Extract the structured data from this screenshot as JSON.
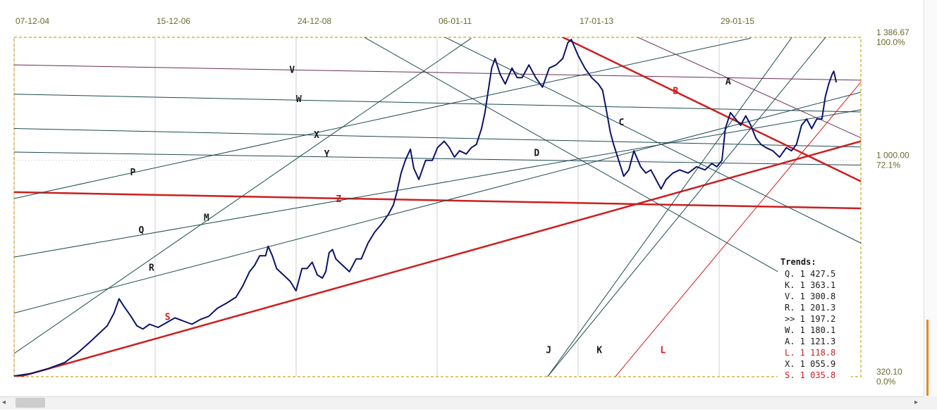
{
  "chart_data": {
    "type": "line",
    "x_axis": {
      "tick_labels": [
        "07-12-04",
        "15-12-06",
        "24-12-08",
        "06-01-11",
        "17-01-13",
        "29-01-15"
      ],
      "range": [
        "07-12-04",
        "2016-08"
      ]
    },
    "y_axis": {
      "range": [
        320.1,
        1386.67
      ],
      "ticks": [
        {
          "value": 1386.67,
          "label": "1 386.67",
          "pct": "100.0%"
        },
        {
          "value": 1000.0,
          "label": "1 000.00",
          "pct": "72.1%"
        },
        {
          "value": 320.1,
          "label": "320.10",
          "pct": "0.0%"
        }
      ]
    },
    "price_series": {
      "name": "",
      "color": "#0b1466",
      "points": [
        [
          0.0,
          322
        ],
        [
          0.02,
          330
        ],
        [
          0.04,
          345
        ],
        [
          0.06,
          365
        ],
        [
          0.075,
          395
        ],
        [
          0.09,
          430
        ],
        [
          0.1,
          455
        ],
        [
          0.11,
          480
        ],
        [
          0.118,
          520
        ],
        [
          0.124,
          565
        ],
        [
          0.13,
          540
        ],
        [
          0.138,
          510
        ],
        [
          0.145,
          480
        ],
        [
          0.152,
          470
        ],
        [
          0.16,
          485
        ],
        [
          0.17,
          475
        ],
        [
          0.18,
          490
        ],
        [
          0.19,
          505
        ],
        [
          0.2,
          495
        ],
        [
          0.21,
          485
        ],
        [
          0.22,
          500
        ],
        [
          0.23,
          510
        ],
        [
          0.24,
          535
        ],
        [
          0.25,
          550
        ],
        [
          0.262,
          570
        ],
        [
          0.27,
          605
        ],
        [
          0.278,
          650
        ],
        [
          0.284,
          670
        ],
        [
          0.29,
          700
        ],
        [
          0.297,
          700
        ],
        [
          0.3,
          730
        ],
        [
          0.305,
          700
        ],
        [
          0.31,
          660
        ],
        [
          0.318,
          640
        ],
        [
          0.326,
          620
        ],
        [
          0.333,
          590
        ],
        [
          0.34,
          660
        ],
        [
          0.346,
          660
        ],
        [
          0.352,
          680
        ],
        [
          0.358,
          640
        ],
        [
          0.364,
          630
        ],
        [
          0.368,
          650
        ],
        [
          0.372,
          710
        ],
        [
          0.376,
          720
        ],
        [
          0.38,
          690
        ],
        [
          0.388,
          670
        ],
        [
          0.396,
          650
        ],
        [
          0.404,
          690
        ],
        [
          0.41,
          690
        ],
        [
          0.418,
          740
        ],
        [
          0.426,
          775
        ],
        [
          0.434,
          800
        ],
        [
          0.442,
          830
        ],
        [
          0.448,
          860
        ],
        [
          0.452,
          900
        ],
        [
          0.457,
          960
        ],
        [
          0.462,
          1000
        ],
        [
          0.468,
          1035
        ],
        [
          0.472,
          975
        ],
        [
          0.478,
          940
        ],
        [
          0.486,
          1000
        ],
        [
          0.494,
          1000
        ],
        [
          0.5,
          1040
        ],
        [
          0.508,
          1060
        ],
        [
          0.514,
          1040
        ],
        [
          0.52,
          1010
        ],
        [
          0.526,
          1030
        ],
        [
          0.534,
          1020
        ],
        [
          0.54,
          1040
        ],
        [
          0.546,
          1050
        ],
        [
          0.552,
          1100
        ],
        [
          0.556,
          1150
        ],
        [
          0.56,
          1220
        ],
        [
          0.564,
          1290
        ],
        [
          0.568,
          1320
        ],
        [
          0.574,
          1270
        ],
        [
          0.58,
          1240
        ],
        [
          0.588,
          1290
        ],
        [
          0.594,
          1260
        ],
        [
          0.6,
          1260
        ],
        [
          0.608,
          1300
        ],
        [
          0.616,
          1260
        ],
        [
          0.624,
          1230
        ],
        [
          0.632,
          1290
        ],
        [
          0.64,
          1300
        ],
        [
          0.648,
          1320
        ],
        [
          0.654,
          1370
        ],
        [
          0.658,
          1380
        ],
        [
          0.666,
          1330
        ],
        [
          0.674,
          1290
        ],
        [
          0.682,
          1260
        ],
        [
          0.69,
          1240
        ],
        [
          0.695,
          1220
        ],
        [
          0.7,
          1150
        ],
        [
          0.704,
          1090
        ],
        [
          0.708,
          1050
        ],
        [
          0.714,
          1000
        ],
        [
          0.72,
          950
        ],
        [
          0.726,
          970
        ],
        [
          0.732,
          1030
        ],
        [
          0.74,
          980
        ],
        [
          0.746,
          960
        ],
        [
          0.752,
          970
        ],
        [
          0.76,
          930
        ],
        [
          0.764,
          910
        ],
        [
          0.77,
          940
        ],
        [
          0.778,
          960
        ],
        [
          0.786,
          970
        ],
        [
          0.796,
          960
        ],
        [
          0.806,
          980
        ],
        [
          0.816,
          970
        ],
        [
          0.824,
          990
        ],
        [
          0.83,
          980
        ],
        [
          0.836,
          1000
        ],
        [
          0.84,
          1100
        ],
        [
          0.846,
          1150
        ],
        [
          0.852,
          1130
        ],
        [
          0.858,
          1110
        ],
        [
          0.864,
          1140
        ],
        [
          0.87,
          1110
        ],
        [
          0.876,
          1070
        ],
        [
          0.882,
          1050
        ],
        [
          0.888,
          1040
        ],
        [
          0.896,
          1030
        ],
        [
          0.904,
          1010
        ],
        [
          0.912,
          1040
        ],
        [
          0.918,
          1030
        ],
        [
          0.924,
          1050
        ],
        [
          0.93,
          1110
        ],
        [
          0.936,
          1130
        ],
        [
          0.942,
          1100
        ],
        [
          0.948,
          1130
        ],
        [
          0.954,
          1130
        ],
        [
          0.958,
          1200
        ],
        [
          0.962,
          1240
        ],
        [
          0.966,
          1270
        ],
        [
          0.968,
          1280
        ],
        [
          0.971,
          1245
        ]
      ]
    },
    "trend_lines": [
      {
        "label": "V",
        "color": "#6a2d5c",
        "width": 1,
        "label_color": "#1a1a1a",
        "points": [
          [
            0.0,
            1300
          ],
          [
            1.0,
            1252
          ]
        ],
        "label_at": [
          0.325,
          1275
        ]
      },
      {
        "label": "W",
        "color": "#1e4a50",
        "width": 1,
        "label_color": "#1a1a1a",
        "points": [
          [
            0.0,
            1208
          ],
          [
            1.0,
            1152
          ]
        ],
        "label_at": [
          0.333,
          1183
        ]
      },
      {
        "label": "X",
        "color": "#1e4a50",
        "width": 1,
        "label_color": "#1a1a1a",
        "points": [
          [
            0.0,
            1100
          ],
          [
            1.0,
            1042
          ]
        ],
        "label_at": [
          0.354,
          1070
        ]
      },
      {
        "label": "Y",
        "color": "#1e4a50",
        "width": 1,
        "label_color": "#1a1a1a",
        "points": [
          [
            0.0,
            1026
          ],
          [
            1.0,
            985
          ]
        ],
        "label_at": [
          0.366,
          1011
        ]
      },
      {
        "label": "Z",
        "color": "#cc1f1f",
        "width": 2.5,
        "label_color": "#cc1f1f",
        "points": [
          [
            0.0,
            900
          ],
          [
            1.0,
            849
          ]
        ],
        "label_at": [
          0.38,
          869
        ]
      },
      {
        "label": "P",
        "color": "#1e4a50",
        "width": 1,
        "label_color": "#1a1a1a",
        "points": [
          [
            0.0,
            880
          ],
          [
            0.87,
            1384
          ]
        ],
        "label_at": [
          0.137,
          953
        ]
      },
      {
        "label": "Q",
        "color": "#1e4a50",
        "width": 1,
        "label_color": "#1a1a1a",
        "points": [
          [
            0.0,
            696
          ],
          [
            1.0,
            1159
          ]
        ],
        "label_at": [
          0.147,
          772
        ]
      },
      {
        "label": "M",
        "color": "#1e4a50",
        "width": 1,
        "label_color": "#1a1a1a",
        "points": [
          [
            0.0,
            393
          ],
          [
            0.54,
            1384
          ]
        ],
        "label_at": [
          0.224,
          810
        ]
      },
      {
        "label": "R",
        "color": "#1e4a50",
        "width": 1,
        "label_color": "#1a1a1a",
        "points": [
          [
            0.0,
            520
          ],
          [
            1.0,
            1214
          ]
        ],
        "label_at": [
          0.159,
          653
        ]
      },
      {
        "label": "S",
        "color": "#cc1f1f",
        "width": 2.5,
        "label_color": "#cc1f1f",
        "points": [
          [
            0.0,
            315
          ],
          [
            1.0,
            1060
          ]
        ],
        "label_at": [
          0.178,
          498
        ]
      },
      {
        "label": "B",
        "color": "#cc1f1f",
        "width": 2.5,
        "label_color": "#cc1f1f",
        "points": [
          [
            0.644,
            1392
          ],
          [
            1.0,
            934
          ]
        ],
        "label_at": [
          0.778,
          1208
        ]
      },
      {
        "label": "A",
        "color": "#6a2d5c",
        "width": 1,
        "label_color": "#1a1a1a",
        "points": [
          [
            0.732,
            1392
          ],
          [
            1.0,
            1071
          ]
        ],
        "label_at": [
          0.84,
          1238
        ]
      },
      {
        "label": "C",
        "color": "#1e4a50",
        "width": 1,
        "label_color": "#1a1a1a",
        "points": [
          [
            0.505,
            1392
          ],
          [
            1.0,
            740
          ]
        ],
        "label_at": [
          0.714,
          1110
        ]
      },
      {
        "label": "D",
        "color": "#1e4a50",
        "width": 1,
        "label_color": "#1a1a1a",
        "points": [
          [
            0.41,
            1392
          ],
          [
            0.91,
            638
          ]
        ],
        "label_at": [
          0.614,
          1014
        ]
      },
      {
        "label": "J",
        "color": "#1e4a50",
        "width": 1,
        "label_color": "#1a1a1a",
        "points": [
          [
            0.63,
            320
          ],
          [
            0.92,
            1392
          ]
        ],
        "label_at": [
          0.628,
          394
        ]
      },
      {
        "label": "K",
        "color": "#1e4a50",
        "width": 1,
        "label_color": "#1a1a1a",
        "points": [
          [
            0.63,
            320
          ],
          [
            0.96,
            1392
          ]
        ],
        "label_at": [
          0.688,
          394
        ]
      },
      {
        "label": "L",
        "color": "#cc1f1f",
        "width": 1,
        "label_color": "#cc1f1f",
        "points": [
          [
            0.71,
            320
          ],
          [
            1.0,
            1246
          ]
        ],
        "label_at": [
          0.763,
          394
        ]
      }
    ],
    "legend": {
      "title": "Trends:",
      "placement": "bottom-right",
      "items": [
        {
          "text": "Q. 1 427.5",
          "color": "#1a1a1a"
        },
        {
          "text": "K. 1 363.1",
          "color": "#1a1a1a"
        },
        {
          "text": "V. 1 300.8",
          "color": "#1a1a1a"
        },
        {
          "text": "R. 1 201.3",
          "color": "#1a1a1a"
        },
        {
          "text": ">> 1 197.2",
          "color": "#1a1a1a"
        },
        {
          "text": "W. 1 180.1",
          "color": "#1a1a1a"
        },
        {
          "text": "A. 1 121.3",
          "color": "#1a1a1a"
        },
        {
          "text": "L. 1 118.8",
          "color": "#cc1f1f"
        },
        {
          "text": "X. 1 055.9",
          "color": "#1a1a1a"
        },
        {
          "text": "S. 1 035.8",
          "color": "#cc1f1f"
        }
      ]
    },
    "grid": true,
    "frame_color": "#d4a017"
  },
  "icons": {
    "scroll_left": "◂",
    "scroll_right": "▸"
  }
}
